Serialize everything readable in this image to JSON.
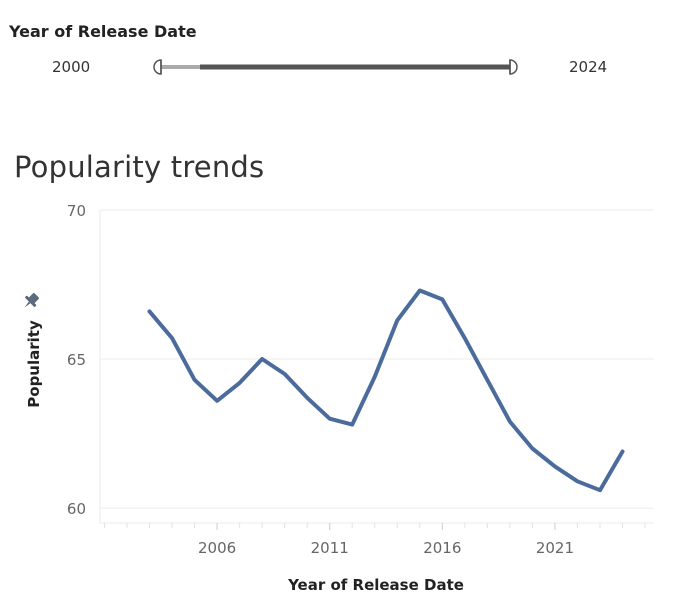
{
  "filter": {
    "title": "Year of Release Date",
    "min_label": "2000",
    "max_label": "2024",
    "range": [
      2000,
      2024
    ],
    "selected": [
      2003,
      2024
    ]
  },
  "chart_title": "Popularity trends",
  "colors": {
    "line": "#4a6b9c",
    "grid": "#ebebeb",
    "slider_active": "#555555",
    "slider_inactive": "#aaaaaa",
    "pin": "#5b6b7c"
  },
  "chart_data": {
    "type": "line",
    "title": "Popularity trends",
    "xlabel": "Year of Release Date",
    "ylabel": "Popularity",
    "xlim": [
      2000.8,
      2025.4
    ],
    "ylim": [
      59.5,
      70
    ],
    "x_ticks": [
      2006,
      2011,
      2016,
      2021
    ],
    "y_ticks": [
      60,
      65,
      70
    ],
    "grid": true,
    "series": [
      {
        "x": [
          2003,
          2004,
          2005,
          2006,
          2007,
          2008,
          2009,
          2010,
          2011,
          2012,
          2013,
          2014,
          2015,
          2016,
          2017,
          2018,
          2019,
          2020,
          2021,
          2022,
          2023,
          2024
        ],
        "values": [
          66.6,
          65.7,
          64.3,
          63.6,
          64.2,
          65.0,
          64.5,
          63.7,
          63.0,
          62.8,
          64.4,
          66.3,
          67.3,
          67.0,
          65.7,
          64.3,
          62.9,
          62.0,
          61.4,
          60.9,
          60.6,
          61.9
        ]
      }
    ]
  }
}
